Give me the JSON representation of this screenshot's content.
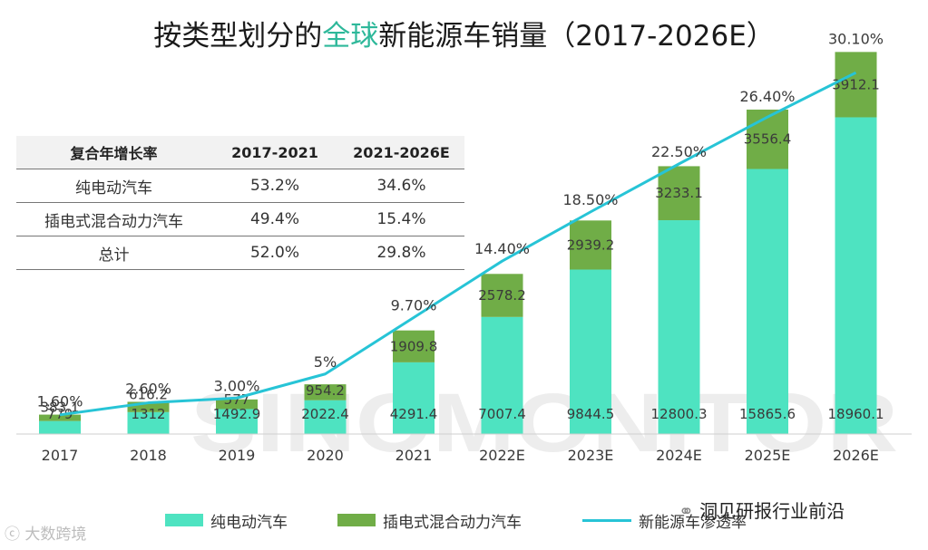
{
  "title": {
    "prefix": "按类型划分的",
    "highlight": "全球",
    "suffix": "新能源车销量（2017-2026E）"
  },
  "colors": {
    "bev": "#4ee3c1",
    "phev": "#70ad47",
    "line": "#27c4d6",
    "title_highlight": "#2eb89a"
  },
  "table": {
    "headers": [
      "复合年增长率",
      "2017-2021",
      "2021-2026E"
    ],
    "rows": [
      [
        "纯电动汽车",
        "53.2%",
        "34.6%"
      ],
      [
        "插电式混合动力汽车",
        "49.4%",
        "15.4%"
      ],
      [
        "总计",
        "52.0%",
        "29.8%"
      ]
    ]
  },
  "chart_data": {
    "type": "bar",
    "stacked": true,
    "categories": [
      "2017",
      "2018",
      "2019",
      "2020",
      "2021",
      "2022E",
      "2023E",
      "2024E",
      "2025E",
      "2026E"
    ],
    "series": [
      {
        "name": "纯电动汽车",
        "values": [
          779,
          1312,
          1492.9,
          2022.4,
          4291.4,
          7007.4,
          9844.5,
          12800.3,
          15865.6,
          18960.1
        ],
        "labels": [
          "779",
          "1312",
          "1492.9",
          "2022.4",
          "4291.4",
          "7007.4",
          "9844.5",
          "12800.3",
          "15865.6",
          "18960.1"
        ]
      },
      {
        "name": "插电式混合动力汽车",
        "values": [
          383.1,
          616.2,
          577,
          954.2,
          1909.8,
          2578.2,
          2939.2,
          3233.1,
          3556.4,
          3912.1
        ],
        "labels": [
          "383.1",
          "616.2",
          "577",
          "954.2",
          "1909.8",
          "2578.2",
          "2939.2",
          "3233.1",
          "3556.4",
          "3912.1"
        ]
      }
    ],
    "line": {
      "name": "新能源车渗透率",
      "values": [
        1.6,
        2.6,
        3.0,
        5.0,
        9.7,
        14.4,
        18.5,
        22.5,
        26.4,
        30.1
      ],
      "labels": [
        "1.60%",
        "2.60%",
        "3.00%",
        "5%",
        "9.70%",
        "14.40%",
        "18.50%",
        "22.50%",
        "26.40%",
        "30.10%"
      ]
    },
    "ylim": [
      0,
      23000
    ],
    "line_ylim": [
      0,
      32
    ]
  },
  "watermark": {
    "main": "SINOMONITOR",
    "bottom_left": "大数跨境",
    "bottom_right": "洞见研报行业前沿"
  }
}
